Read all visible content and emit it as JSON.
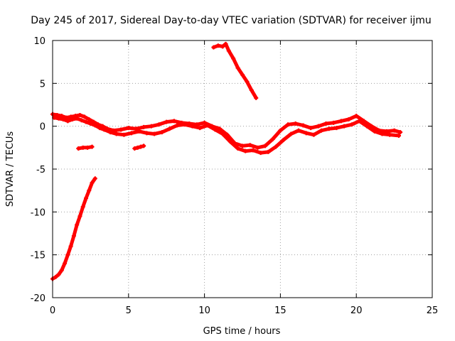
{
  "chart_data": {
    "type": "scatter",
    "title": "Day 245 of 2017, Sidereal Day-to-day VTEC variation (SDTVAR) for receiver ijmu",
    "xlabel": "GPS time / hours",
    "ylabel": "SDTVAR / TECUs",
    "xlim": [
      0,
      25
    ],
    "ylim": [
      -20,
      10
    ],
    "xticks": [
      "0",
      "5",
      "10",
      "15",
      "20",
      "25"
    ],
    "yticks": [
      "10",
      "5",
      "0",
      "-5",
      "-10",
      "-15",
      "-20"
    ],
    "grid": true,
    "legend": "none",
    "series_color": "#ff0000",
    "series": [
      {
        "name": "main-band-upper",
        "x": [
          0.0,
          0.3,
          0.6,
          0.9,
          1.2,
          1.5,
          1.8,
          2.1,
          2.4,
          2.7,
          3.0,
          3.3,
          3.6,
          4.0,
          4.5,
          5.0,
          5.5,
          6.0,
          6.5,
          7.0,
          7.5,
          8.0,
          8.5,
          9.0,
          9.5,
          10.0,
          10.5,
          11.0,
          11.5,
          12.0,
          12.5,
          13.0,
          13.5,
          14.0,
          14.5,
          15.0,
          15.5,
          16.0,
          16.5,
          17.0,
          17.5,
          18.0,
          18.5,
          19.0,
          19.5,
          20.0,
          20.5,
          21.0,
          21.5,
          22.0,
          22.5,
          22.9
        ],
        "y": [
          1.4,
          1.3,
          1.2,
          1.0,
          1.1,
          1.2,
          1.3,
          1.1,
          0.8,
          0.5,
          0.2,
          0.0,
          -0.3,
          -0.5,
          -0.4,
          -0.2,
          -0.3,
          -0.1,
          0.0,
          0.2,
          0.5,
          0.6,
          0.4,
          0.3,
          0.2,
          0.4,
          0.0,
          -0.3,
          -1.0,
          -2.0,
          -2.3,
          -2.2,
          -2.5,
          -2.3,
          -1.5,
          -0.5,
          0.2,
          0.3,
          0.1,
          -0.2,
          0.0,
          0.3,
          0.4,
          0.6,
          0.8,
          1.2,
          0.6,
          0.0,
          -0.5,
          -0.6,
          -0.5,
          -0.7
        ]
      },
      {
        "name": "main-band-lower",
        "x": [
          0.1,
          0.4,
          0.7,
          1.0,
          1.3,
          1.6,
          1.9,
          2.2,
          2.5,
          2.8,
          3.1,
          3.4,
          3.8,
          4.2,
          4.7,
          5.2,
          5.7,
          6.2,
          6.7,
          7.2,
          7.7,
          8.2,
          8.7,
          9.2,
          9.7,
          10.2,
          10.7,
          11.2,
          11.7,
          12.2,
          12.7,
          13.2,
          13.7,
          14.2,
          14.7,
          15.2,
          15.7,
          16.2,
          16.7,
          17.2,
          17.7,
          18.2,
          18.7,
          19.2,
          19.7,
          20.2,
          20.7,
          21.2,
          21.7,
          22.2,
          22.8
        ],
        "y": [
          1.0,
          0.9,
          0.8,
          0.6,
          0.8,
          0.9,
          0.7,
          0.5,
          0.3,
          0.1,
          -0.2,
          -0.4,
          -0.7,
          -0.9,
          -1.0,
          -0.8,
          -0.6,
          -0.8,
          -0.9,
          -0.7,
          -0.3,
          0.1,
          0.2,
          0.0,
          -0.2,
          0.1,
          -0.4,
          -0.9,
          -1.8,
          -2.6,
          -2.9,
          -2.8,
          -3.1,
          -3.0,
          -2.4,
          -1.6,
          -0.9,
          -0.5,
          -0.8,
          -1.0,
          -0.5,
          -0.3,
          -0.2,
          0.0,
          0.2,
          0.6,
          0.0,
          -0.6,
          -0.9,
          -1.0,
          -1.1
        ]
      },
      {
        "name": "segment-high",
        "x": [
          10.6,
          10.9,
          11.2,
          11.4,
          11.6,
          11.9,
          12.2,
          12.5,
          12.8,
          13.1,
          13.4
        ],
        "y": [
          9.2,
          9.4,
          9.3,
          9.6,
          8.8,
          7.9,
          6.8,
          6.0,
          5.2,
          4.2,
          3.3
        ]
      },
      {
        "name": "segment-low-rising",
        "x": [
          0.0,
          0.2,
          0.4,
          0.6,
          0.8,
          1.0,
          1.2,
          1.4,
          1.6,
          1.8,
          2.0,
          2.2,
          2.4,
          2.6,
          2.8
        ],
        "y": [
          -17.8,
          -17.6,
          -17.3,
          -16.8,
          -16.0,
          -15.0,
          -14.0,
          -12.8,
          -11.5,
          -10.5,
          -9.4,
          -8.4,
          -7.5,
          -6.6,
          -6.1
        ]
      },
      {
        "name": "segment-short-a",
        "x": [
          1.7,
          2.0,
          2.3,
          2.6
        ],
        "y": [
          -2.6,
          -2.5,
          -2.5,
          -2.4
        ]
      },
      {
        "name": "segment-short-b",
        "x": [
          5.4,
          5.6,
          5.8,
          6.0
        ],
        "y": [
          -2.6,
          -2.5,
          -2.4,
          -2.3
        ]
      }
    ]
  }
}
